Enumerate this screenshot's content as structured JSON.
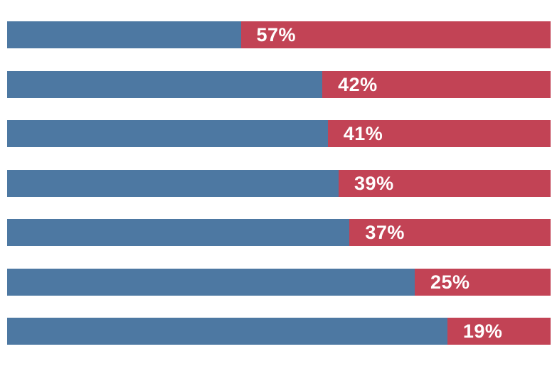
{
  "page": {
    "background_color": "#ffffff"
  },
  "chart_data": {
    "type": "bar",
    "orientation": "horizontal",
    "stacked": true,
    "percent_scale": true,
    "xlim": [
      0,
      100
    ],
    "grid": false,
    "legend_position": "none",
    "axis_ticks_visible": false,
    "category_labels_visible": false,
    "categories": [
      "row-1",
      "row-2",
      "row-3",
      "row-4",
      "row-5",
      "row-6",
      "row-7"
    ],
    "series": [
      {
        "name": "blue-left-segment",
        "color": "#4d78a2",
        "values": [
          43,
          58,
          59,
          61,
          63,
          75,
          81
        ]
      },
      {
        "name": "red-right-segment",
        "color": "#c24355",
        "values": [
          57,
          42,
          41,
          39,
          37,
          25,
          19
        ]
      }
    ],
    "data_labels": {
      "applies_to_series": "red-right-segment",
      "texts": [
        "57%",
        "42%",
        "41%",
        "39%",
        "37%",
        "25%",
        "19%"
      ],
      "color": "#ffffff",
      "position": "inside-start"
    }
  }
}
